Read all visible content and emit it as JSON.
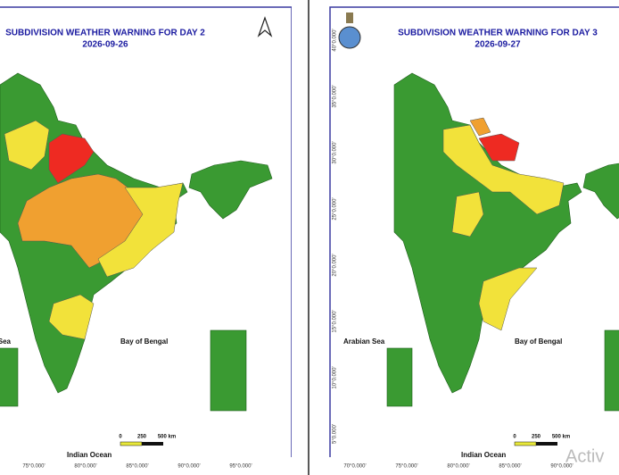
{
  "panels": [
    {
      "title": "SUBDIVISION WEATHER WARNING FOR DAY 2",
      "date": "2026-09-26",
      "arabian_sea": "Arabian Sea",
      "bay_of_bengal": "Bay of Bengal",
      "indian_ocean": "Indian Ocean",
      "scale": [
        "0",
        "250",
        "500 km"
      ],
      "x_labels": [
        "75°0.000'",
        "80°0.000'",
        "85°0.000'",
        "90°0.000'",
        "95°0.000'"
      ]
    },
    {
      "title": "SUBDIVISION WEATHER WARNING FOR DAY 3",
      "date": "2026-09-27",
      "arabian_sea": "Arabian Sea",
      "bay_of_bengal": "Bay of Bengal",
      "indian_ocean": "Indian Ocean",
      "scale": [
        "0",
        "250",
        "500 km"
      ],
      "x_labels": [
        "70°0.000'",
        "75°0.000'",
        "80°0.000'",
        "85°0.000'",
        "90°0.000'"
      ],
      "y_labels": [
        "40°0.000'",
        "35°0.000'",
        "30°0.000'",
        "25°0.000'",
        "20°0.000'",
        "15°0.000'",
        "10°0.000'",
        "5°0.000'"
      ]
    }
  ],
  "watermark": "Activ"
}
